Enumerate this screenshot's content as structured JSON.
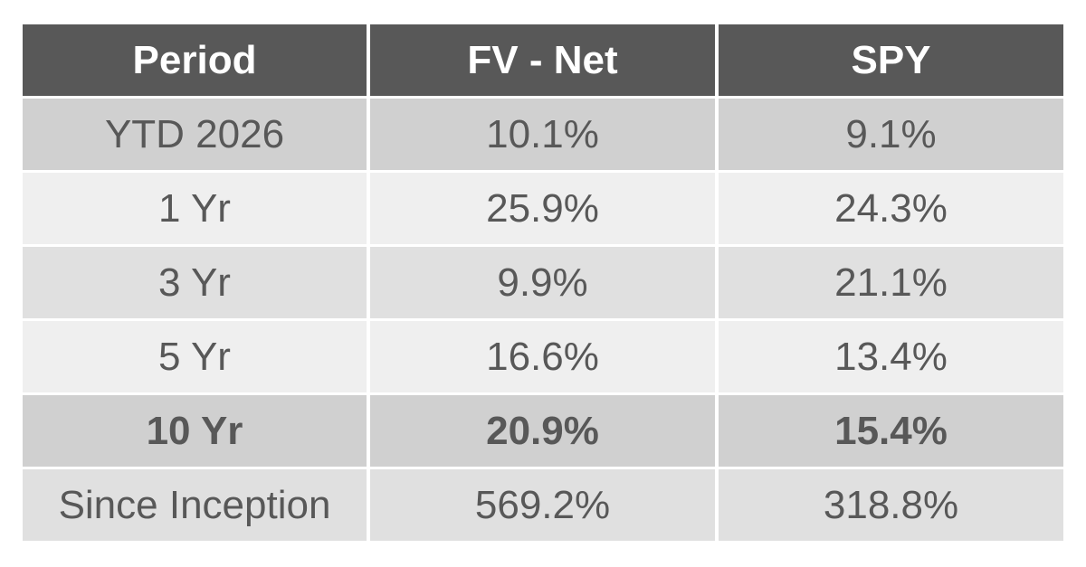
{
  "table": {
    "header": [
      "Period",
      "FV - Net",
      "SPY"
    ],
    "rows": [
      [
        "YTD 2026",
        "10.1%",
        "9.1%"
      ],
      [
        "1 Yr",
        "25.9%",
        "24.3%"
      ],
      [
        "3 Yr",
        "9.9%",
        "21.1%"
      ],
      [
        "5 Yr",
        "16.6%",
        "13.4%"
      ],
      [
        "10 Yr",
        "20.9%",
        "15.4%"
      ],
      [
        "Since Inception",
        "569.2%",
        "318.8%"
      ]
    ]
  }
}
